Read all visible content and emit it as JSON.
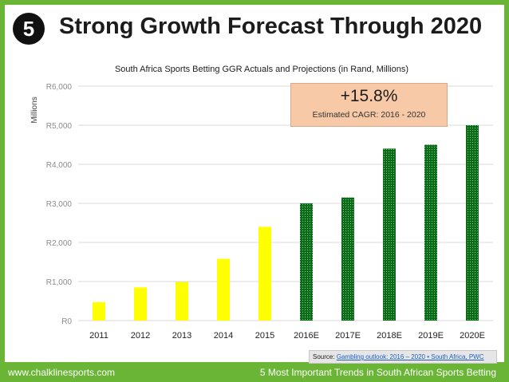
{
  "slide": {
    "number": "5",
    "title": "Strong Growth Forecast Through 2020"
  },
  "callout": {
    "value": "+15.8%",
    "label": "Estimated CAGR: 2016 - 2020"
  },
  "source": {
    "prefix": "Source:",
    "link_text": "Gambling outlook: 2016 – 2020 • South Africa, PWC"
  },
  "footer": {
    "website": "www.chalklinesports.com",
    "caption": "5 Most Important Trends in South African Sports Betting"
  },
  "colors": {
    "actual": "#ffff00",
    "projected": "#0b6b18",
    "grid": "#d9d9d9",
    "brand_green": "#6bb536"
  },
  "chart_data": {
    "type": "bar",
    "title": "South Africa Sports Betting GGR Actuals and Projections (in Rand, Millions)",
    "ylabel": "Millions",
    "xlabel": "",
    "ylim": [
      0,
      6000
    ],
    "yticks": [
      0,
      1000,
      2000,
      3000,
      4000,
      5000,
      6000
    ],
    "ytick_labels": [
      "R0",
      "R1,000",
      "R2,000",
      "R3,000",
      "R4,000",
      "R5,000",
      "R6,000"
    ],
    "categories": [
      "2011",
      "2012",
      "2013",
      "2014",
      "2015",
      "2016E",
      "2017E",
      "2018E",
      "2019E",
      "2020E"
    ],
    "values": [
      470,
      850,
      990,
      1580,
      2400,
      3000,
      3150,
      4400,
      4500,
      5000
    ],
    "kinds": [
      "actual",
      "actual",
      "actual",
      "actual",
      "actual",
      "projected",
      "projected",
      "projected",
      "projected",
      "projected"
    ],
    "grid": true
  }
}
